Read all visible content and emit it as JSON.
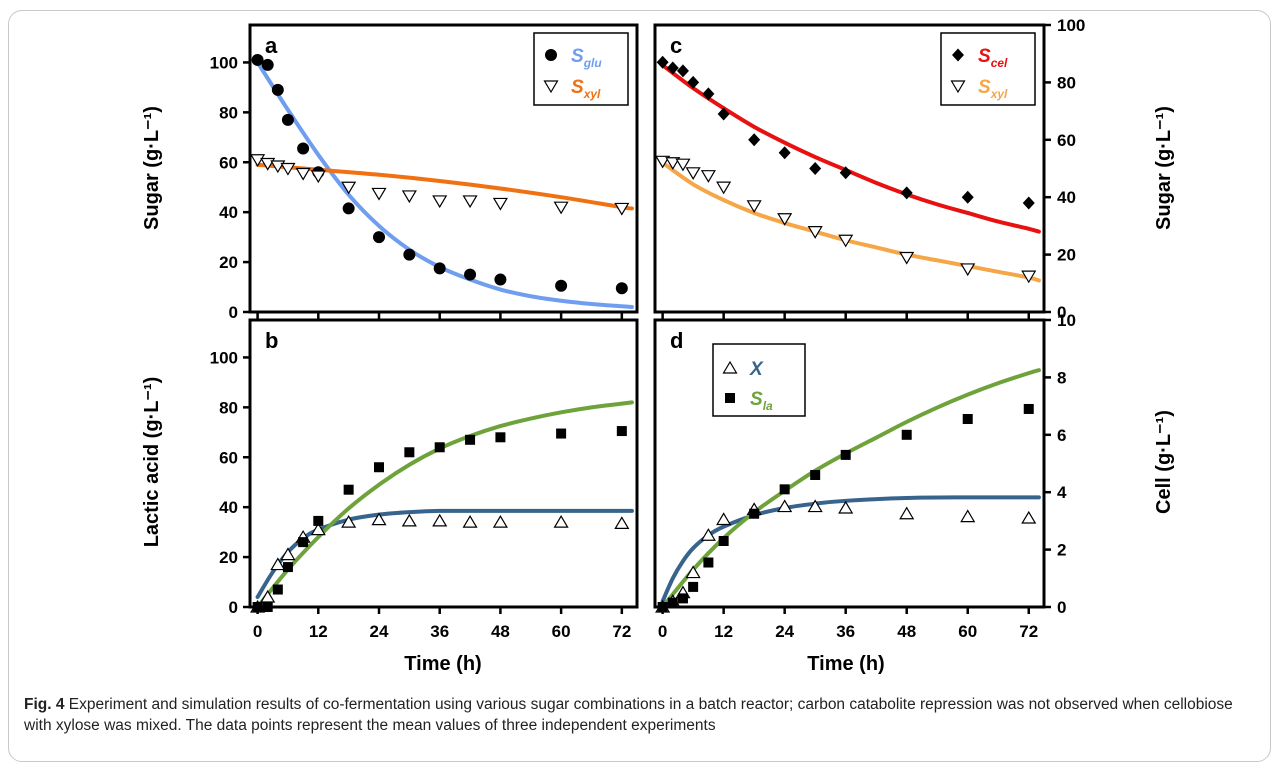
{
  "figure": {
    "caption_label": "Fig. 4",
    "caption_text": "Experiment and simulation results of co-fermentation using various sugar combinations in a batch reactor; carbon catabolite repression was not observed when cellobiose with xylose was mixed. The data points represent the mean values of three independent experiments",
    "colors": {
      "glucose": "#6f9ef0",
      "xylose_a": "#f07012",
      "cellobiose": "#e81010",
      "xylose_c": "#f5a646",
      "cell": "#36648c",
      "lactic": "#6ea23a"
    }
  },
  "chart_data": [
    {
      "panel": "a",
      "type": "scatter",
      "ylabel": "Sugar (g·L⁻¹)",
      "ylim": [
        0,
        115
      ],
      "yticks": [
        0,
        20,
        40,
        60,
        80,
        100
      ],
      "xlim": [
        -1.5,
        75
      ],
      "xticks": [
        0,
        12,
        24,
        36,
        48,
        60,
        72
      ],
      "legend_position": "top-right",
      "series": [
        {
          "name": "S",
          "sub": "glu",
          "color": "#6f9ef0",
          "marker": "circle",
          "x": [
            0,
            2,
            4,
            6,
            9,
            12,
            18,
            24,
            30,
            36,
            42,
            48,
            60,
            72
          ],
          "y": [
            101,
            99,
            89,
            77,
            65.5,
            56,
            41.5,
            30,
            23,
            17.5,
            15,
            13,
            10.5,
            9.5
          ],
          "model_x": [
            0,
            6,
            12,
            18,
            24,
            30,
            36,
            42,
            48,
            54,
            60,
            66,
            72,
            74
          ],
          "model_y": [
            100,
            81,
            63,
            47,
            34.5,
            25,
            18,
            13,
            9,
            6.3,
            4.5,
            3.2,
            2.3,
            2
          ]
        },
        {
          "name": "S",
          "sub": "xyl",
          "color": "#f07012",
          "marker": "triangle-down",
          "x": [
            0,
            2,
            4,
            6,
            9,
            12,
            18,
            24,
            30,
            36,
            42,
            48,
            60,
            72
          ],
          "y": [
            61,
            59.5,
            58.5,
            57.5,
            55.5,
            54.5,
            50,
            47.5,
            46.5,
            44.5,
            44.5,
            43.5,
            42,
            41.5
          ],
          "model_x": [
            0,
            12,
            24,
            36,
            48,
            60,
            72,
            74
          ],
          "model_y": [
            59,
            57,
            55,
            52.5,
            49.5,
            46,
            42,
            41.5
          ]
        }
      ]
    },
    {
      "panel": "c",
      "type": "scatter",
      "ylabel": "Sugar (g·L⁻¹)",
      "ylim": [
        0,
        100
      ],
      "yticks": [
        0,
        20,
        40,
        60,
        80,
        100
      ],
      "xlim": [
        -1.5,
        75
      ],
      "xticks": [
        0,
        12,
        24,
        36,
        48,
        60,
        72
      ],
      "legend_position": "top-right",
      "series": [
        {
          "name": "S",
          "sub": "cel",
          "color": "#e81010",
          "marker": "diamond",
          "x": [
            0,
            2,
            4,
            6,
            9,
            12,
            18,
            24,
            30,
            36,
            48,
            60,
            72
          ],
          "y": [
            87,
            85,
            84,
            80,
            76,
            69,
            60,
            55.5,
            50,
            48.5,
            41.5,
            40,
            38
          ],
          "model_x": [
            0,
            6,
            12,
            18,
            24,
            30,
            36,
            42,
            48,
            54,
            60,
            66,
            72,
            74
          ],
          "model_y": [
            86,
            78,
            71,
            64.5,
            59,
            54,
            49.5,
            45,
            41,
            37.5,
            34.5,
            31.5,
            29,
            28
          ]
        },
        {
          "name": "S",
          "sub": "xyl",
          "color": "#f5a646",
          "marker": "triangle-down",
          "x": [
            0,
            2,
            4,
            6,
            9,
            12,
            18,
            24,
            30,
            36,
            48,
            60,
            72
          ],
          "y": [
            52.5,
            52,
            51.5,
            48.5,
            47.5,
            43.5,
            37,
            32.5,
            28,
            25,
            19,
            15,
            12.5
          ],
          "model_x": [
            0,
            6,
            12,
            18,
            24,
            30,
            36,
            42,
            48,
            54,
            60,
            66,
            72,
            74
          ],
          "model_y": [
            52,
            44.5,
            39,
            34.5,
            31,
            28,
            25,
            22.5,
            20,
            18,
            16,
            14,
            12,
            11
          ]
        }
      ]
    },
    {
      "panel": "b",
      "type": "scatter",
      "ylabel": "Lactic acid (g·L⁻¹)",
      "xlabel": "Time (h)",
      "ylim": [
        0,
        115
      ],
      "yticks": [
        0,
        20,
        40,
        60,
        80,
        100
      ],
      "xlim": [
        -1.5,
        75
      ],
      "xticks": [
        0,
        12,
        24,
        36,
        48,
        60,
        72
      ],
      "series": [
        {
          "name": "X",
          "color": "#36648c",
          "marker": "triangle-up",
          "x": [
            0,
            2,
            4,
            6,
            9,
            12,
            18,
            24,
            30,
            36,
            42,
            48,
            60,
            72
          ],
          "y": [
            0,
            4,
            17,
            21,
            28,
            31,
            34,
            35,
            34.5,
            34.5,
            34,
            34,
            34,
            33.5
          ],
          "model_x": [
            0,
            3,
            6,
            9,
            12,
            18,
            24,
            30,
            36,
            48,
            60,
            72,
            74
          ],
          "model_y": [
            4,
            14,
            22,
            27.5,
            31,
            35,
            37,
            38,
            38.5,
            38.5,
            38.5,
            38.5,
            38.5
          ]
        },
        {
          "name": "S",
          "sub": "la",
          "color": "#6ea23a",
          "marker": "square",
          "x": [
            0,
            2,
            4,
            6,
            9,
            12,
            18,
            24,
            30,
            36,
            42,
            48,
            60,
            72
          ],
          "y": [
            0,
            0,
            7,
            16,
            26,
            34.5,
            47,
            56,
            62,
            64,
            67,
            68,
            69.5,
            70.5
          ],
          "model_x": [
            0,
            6,
            12,
            18,
            24,
            30,
            36,
            42,
            48,
            54,
            60,
            66,
            72,
            74
          ],
          "model_y": [
            0,
            15,
            28,
            39.5,
            49,
            57,
            63.5,
            68.5,
            72.5,
            75.5,
            78,
            80,
            81.5,
            82
          ]
        }
      ]
    },
    {
      "panel": "d",
      "type": "scatter",
      "ylabel": "Cell (g·L⁻¹)",
      "xlabel": "Time (h)",
      "ylim": [
        0,
        10
      ],
      "yticks": [
        0,
        2,
        4,
        6,
        8,
        10
      ],
      "xlim": [
        -1.5,
        75
      ],
      "xticks": [
        0,
        12,
        24,
        36,
        48,
        60,
        72
      ],
      "legend_position": "top-left",
      "series": [
        {
          "name": "X",
          "color": "#36648c",
          "marker": "triangle-up",
          "x": [
            0,
            2,
            4,
            6,
            9,
            12,
            18,
            24,
            30,
            36,
            48,
            60,
            72
          ],
          "y": [
            0,
            0.2,
            0.5,
            1.2,
            2.5,
            3.05,
            3.4,
            3.5,
            3.5,
            3.45,
            3.25,
            3.15,
            3.1
          ],
          "model_x": [
            0,
            2,
            4,
            6,
            9,
            12,
            18,
            24,
            30,
            36,
            48,
            60,
            72,
            74
          ],
          "model_y": [
            0.2,
            1.0,
            1.6,
            2.05,
            2.5,
            2.8,
            3.2,
            3.45,
            3.6,
            3.7,
            3.8,
            3.82,
            3.82,
            3.82
          ]
        },
        {
          "name": "S",
          "sub": "la",
          "color": "#6ea23a",
          "marker": "square",
          "x": [
            0,
            2,
            4,
            6,
            9,
            12,
            18,
            24,
            30,
            36,
            48,
            60,
            72
          ],
          "y": [
            0,
            0.15,
            0.3,
            0.7,
            1.55,
            2.3,
            3.25,
            4.1,
            4.6,
            5.3,
            6.0,
            6.55,
            6.9
          ],
          "model_x": [
            0,
            6,
            12,
            18,
            24,
            30,
            36,
            42,
            48,
            54,
            60,
            66,
            72,
            74
          ],
          "model_y": [
            0,
            1.3,
            2.4,
            3.3,
            4.05,
            4.75,
            5.35,
            5.9,
            6.45,
            6.95,
            7.4,
            7.8,
            8.15,
            8.25
          ]
        }
      ]
    }
  ]
}
